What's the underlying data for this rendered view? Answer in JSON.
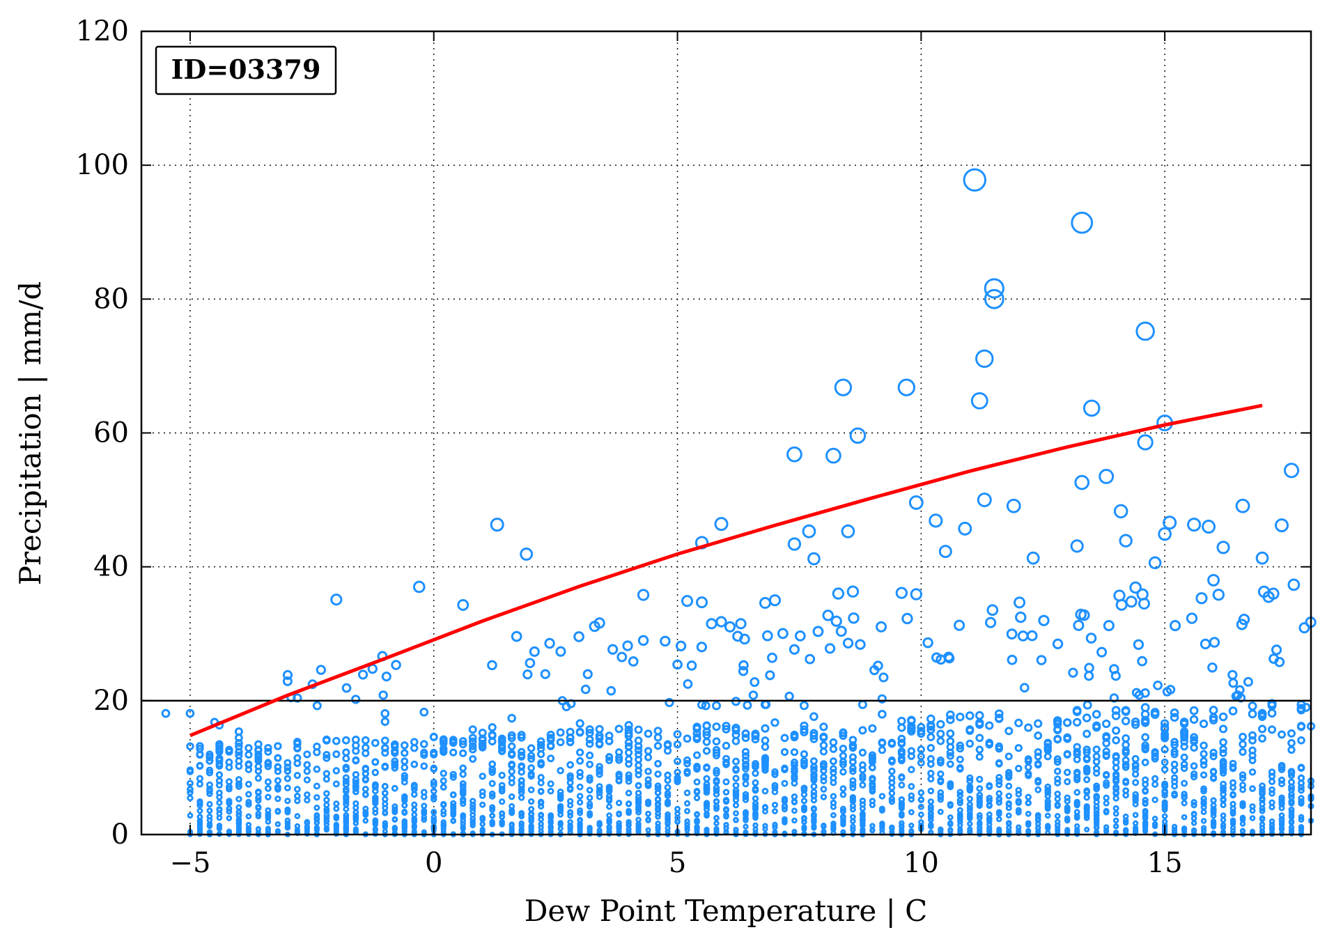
{
  "chart_data": {
    "type": "scatter",
    "title": "",
    "annotation": "ID=03379",
    "xlabel": "Dew Point Temperature | C",
    "ylabel": "Precipitation | mm/d",
    "xlim": [
      -6,
      18
    ],
    "ylim": [
      0,
      120
    ],
    "xticks": [
      -5,
      0,
      5,
      10,
      15
    ],
    "yticks": [
      0,
      20,
      40,
      60,
      80,
      100,
      120
    ],
    "grid": true,
    "threshold_line": 20,
    "marker_size_scales_with_value": true,
    "colors": {
      "points": "#1e90ff",
      "fit_line": "#ff0000",
      "threshold": "#000000"
    },
    "fit_curve": {
      "x": [
        -5,
        -3,
        -1,
        1,
        3,
        5,
        7,
        9,
        11,
        13,
        15,
        17
      ],
      "y": [
        14.8,
        20.8,
        26.3,
        31.9,
        37.1,
        41.9,
        46.2,
        50.3,
        54.3,
        57.9,
        61.2,
        64.1
      ]
    },
    "outliers": [
      {
        "x": -5.5,
        "y": 18.1
      },
      {
        "x": -4.5,
        "y": 16.8
      },
      {
        "x": -2.0,
        "y": 35.1
      },
      {
        "x": -3.0,
        "y": 22.9
      },
      {
        "x": -2.8,
        "y": 20.4
      },
      {
        "x": -0.3,
        "y": 37.0
      },
      {
        "x": 0.6,
        "y": 34.3
      },
      {
        "x": 1.3,
        "y": 46.3
      },
      {
        "x": 1.9,
        "y": 41.9
      },
      {
        "x": 1.7,
        "y": 29.6
      },
      {
        "x": 3.3,
        "y": 31.1
      },
      {
        "x": 3.4,
        "y": 31.6
      },
      {
        "x": 4.3,
        "y": 35.8
      },
      {
        "x": 4.3,
        "y": 29.0
      },
      {
        "x": 5.0,
        "y": 25.4
      },
      {
        "x": 5.2,
        "y": 34.9
      },
      {
        "x": 5.5,
        "y": 43.6
      },
      {
        "x": 5.5,
        "y": 34.7
      },
      {
        "x": 5.7,
        "y": 31.5
      },
      {
        "x": 5.9,
        "y": 46.4
      },
      {
        "x": 5.9,
        "y": 31.8
      },
      {
        "x": 6.3,
        "y": 31.5
      },
      {
        "x": 6.8,
        "y": 34.6
      },
      {
        "x": 7.0,
        "y": 35.0
      },
      {
        "x": 7.4,
        "y": 56.8
      },
      {
        "x": 7.4,
        "y": 43.4
      },
      {
        "x": 7.7,
        "y": 45.3
      },
      {
        "x": 7.8,
        "y": 41.2
      },
      {
        "x": 8.2,
        "y": 56.6
      },
      {
        "x": 8.3,
        "y": 36.0
      },
      {
        "x": 8.4,
        "y": 66.8
      },
      {
        "x": 8.5,
        "y": 45.3
      },
      {
        "x": 8.6,
        "y": 36.3
      },
      {
        "x": 8.7,
        "y": 59.6
      },
      {
        "x": 9.6,
        "y": 36.1
      },
      {
        "x": 9.7,
        "y": 66.8
      },
      {
        "x": 9.9,
        "y": 49.6
      },
      {
        "x": 9.9,
        "y": 35.9
      },
      {
        "x": 10.3,
        "y": 46.9
      },
      {
        "x": 10.5,
        "y": 42.3
      },
      {
        "x": 10.9,
        "y": 45.7
      },
      {
        "x": 11.1,
        "y": 97.8
      },
      {
        "x": 11.2,
        "y": 64.8
      },
      {
        "x": 11.3,
        "y": 71.1
      },
      {
        "x": 11.3,
        "y": 50.0
      },
      {
        "x": 11.5,
        "y": 81.6
      },
      {
        "x": 11.5,
        "y": 80.0
      },
      {
        "x": 11.9,
        "y": 49.1
      },
      {
        "x": 12.3,
        "y": 41.3
      },
      {
        "x": 13.2,
        "y": 43.1
      },
      {
        "x": 13.3,
        "y": 91.4
      },
      {
        "x": 13.3,
        "y": 52.6
      },
      {
        "x": 13.5,
        "y": 63.7
      },
      {
        "x": 13.8,
        "y": 53.5
      },
      {
        "x": 14.1,
        "y": 48.3
      },
      {
        "x": 14.2,
        "y": 43.9
      },
      {
        "x": 14.4,
        "y": 36.9
      },
      {
        "x": 14.6,
        "y": 75.2
      },
      {
        "x": 14.6,
        "y": 58.6
      },
      {
        "x": 14.8,
        "y": 40.6
      },
      {
        "x": 15.0,
        "y": 61.5
      },
      {
        "x": 15.0,
        "y": 44.9
      },
      {
        "x": 15.1,
        "y": 46.6
      },
      {
        "x": 15.6,
        "y": 46.3
      },
      {
        "x": 15.9,
        "y": 46.0
      },
      {
        "x": 16.0,
        "y": 38.0
      },
      {
        "x": 16.2,
        "y": 42.9
      },
      {
        "x": 16.6,
        "y": 49.1
      },
      {
        "x": 17.0,
        "y": 41.3
      },
      {
        "x": 17.4,
        "y": 46.2
      },
      {
        "x": 17.6,
        "y": 54.4
      },
      {
        "x": 17.9,
        "y": 19.0
      }
    ],
    "bulk_points_note": "Dense cloud of several thousand observations below ~20 mm/d across x = -5 to 18"
  }
}
